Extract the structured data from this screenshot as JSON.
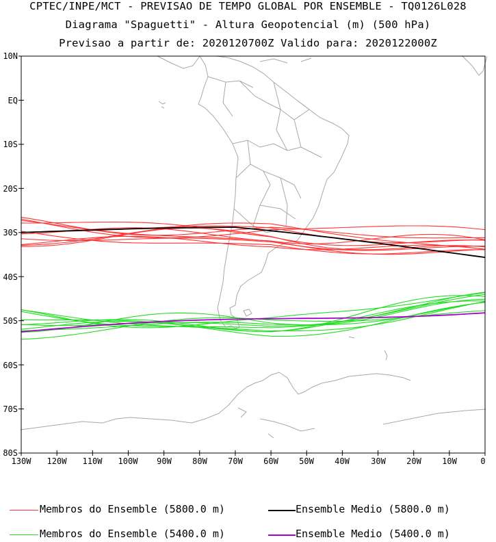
{
  "titles": {
    "line1": "CPTEC/INPE/MCT - PREVISAO DE TEMPO GLOBAL POR ENSEMBLE - TQ0126L028",
    "line2": "Diagrama \"Spaguetti\" - Altura Geopotencial (m) (500 hPa)",
    "line3": "Previsao a partir de: 2020120700Z  Valido para: 2020122000Z"
  },
  "axes": {
    "lat_labels": [
      "10N",
      "EQ",
      "10S",
      "20S",
      "30S",
      "40S",
      "50S",
      "60S",
      "70S",
      "80S"
    ],
    "lon_labels": [
      "130W",
      "120W",
      "110W",
      "100W",
      "90W",
      "80W",
      "70W",
      "60W",
      "50W",
      "40W",
      "30W",
      "20W",
      "10W",
      "0"
    ]
  },
  "legend": {
    "items": [
      {
        "label": "Membros do Ensemble (5800.0 m)",
        "color": "#ff3333"
      },
      {
        "label": "Ensemble Medio (5800.0 m)",
        "color": "#000000"
      },
      {
        "label": "Membros do Ensemble (5400.0 m)",
        "color": "#22dd22"
      },
      {
        "label": "Ensemble Medio (5400.0 m)",
        "color": "#aa00cc"
      }
    ]
  },
  "colors": {
    "coast": "#a8a8a8",
    "red_members": "#ff3333",
    "green_members": "#22dd22",
    "mean_5800": "#000000",
    "mean_5400": "#aa00cc"
  }
}
